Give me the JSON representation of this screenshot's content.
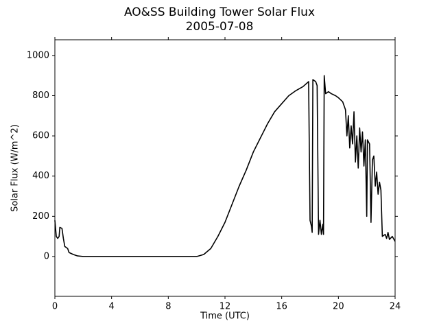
{
  "chart_data": {
    "type": "line",
    "title": "AO&SS Building Tower Solar Flux",
    "subtitle": "2005-07-08",
    "xlabel": "Time (UTC)",
    "ylabel": "Solar Flux (W/m^2)",
    "xlim": [
      0,
      24
    ],
    "xticks": [
      0,
      4,
      8,
      12,
      16,
      20,
      24
    ],
    "ylim": [
      -198,
      1078
    ],
    "yticks": [
      0,
      200,
      400,
      600,
      800,
      1000
    ],
    "grid": false,
    "series": [
      {
        "name": "Solar Flux",
        "color": "#000000",
        "x": [
          0,
          0.1,
          0.2,
          0.3,
          0.35,
          0.5,
          0.6,
          0.7,
          0.9,
          1.0,
          1.3,
          1.6,
          2,
          4,
          6,
          8,
          10,
          10.5,
          11,
          11.5,
          12,
          12.5,
          13,
          13.5,
          14,
          14.5,
          15,
          15.5,
          16,
          16.5,
          17,
          17.5,
          17.9,
          18.0,
          18.1,
          18.15,
          18.2,
          18.4,
          18.5,
          18.6,
          18.7,
          18.8,
          18.9,
          18.95,
          19.0,
          19.1,
          19.3,
          19.5,
          19.8,
          20.0,
          20.3,
          20.5,
          20.6,
          20.7,
          20.8,
          20.9,
          21.0,
          21.1,
          21.2,
          21.3,
          21.4,
          21.5,
          21.6,
          21.7,
          21.8,
          21.9,
          22.0,
          22.05,
          22.2,
          22.3,
          22.4,
          22.5,
          22.6,
          22.7,
          22.8,
          22.9,
          23.0,
          23.1,
          23.3,
          23.4,
          23.5,
          23.6,
          23.8,
          24.0
        ],
        "values": [
          180,
          100,
          90,
          100,
          145,
          140,
          90,
          50,
          40,
          20,
          10,
          3,
          0,
          0,
          0,
          0,
          0,
          10,
          40,
          100,
          170,
          260,
          350,
          430,
          520,
          590,
          660,
          720,
          760,
          800,
          825,
          845,
          870,
          180,
          150,
          120,
          880,
          870,
          850,
          110,
          180,
          110,
          160,
          110,
          900,
          810,
          820,
          810,
          800,
          790,
          770,
          730,
          600,
          700,
          540,
          650,
          560,
          720,
          470,
          600,
          440,
          640,
          520,
          620,
          450,
          580,
          200,
          580,
          560,
          170,
          480,
          500,
          350,
          420,
          310,
          370,
          330,
          100,
          110,
          90,
          120,
          85,
          100,
          75
        ]
      }
    ]
  }
}
